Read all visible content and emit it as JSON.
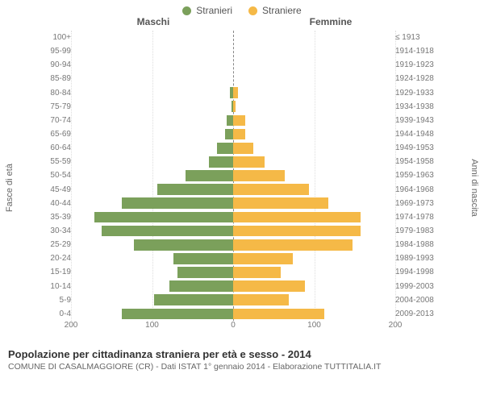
{
  "legend": {
    "male": {
      "label": "Stranieri",
      "color": "#7ba05b"
    },
    "female": {
      "label": "Straniere",
      "color": "#f5b947"
    }
  },
  "headers": {
    "male": "Maschi",
    "female": "Femmine"
  },
  "axis_labels": {
    "left": "Fasce di età",
    "right": "Anni di nascita"
  },
  "chart": {
    "type": "population-pyramid",
    "xmax": 200,
    "xticks": [
      200,
      100,
      0,
      100,
      200
    ],
    "grid_color": "#dddddd",
    "center_color": "#888888",
    "background": "#ffffff",
    "age_groups": [
      {
        "age": "100+",
        "birth": "≤ 1913",
        "m": 0,
        "f": 0
      },
      {
        "age": "95-99",
        "birth": "1914-1918",
        "m": 0,
        "f": 0
      },
      {
        "age": "90-94",
        "birth": "1919-1923",
        "m": 0,
        "f": 0
      },
      {
        "age": "85-89",
        "birth": "1924-1928",
        "m": 0,
        "f": 0
      },
      {
        "age": "80-84",
        "birth": "1929-1933",
        "m": 4,
        "f": 6
      },
      {
        "age": "75-79",
        "birth": "1934-1938",
        "m": 2,
        "f": 3
      },
      {
        "age": "70-74",
        "birth": "1939-1943",
        "m": 8,
        "f": 15
      },
      {
        "age": "65-69",
        "birth": "1944-1948",
        "m": 10,
        "f": 15
      },
      {
        "age": "60-64",
        "birth": "1949-1953",
        "m": 20,
        "f": 25
      },
      {
        "age": "55-59",
        "birth": "1954-1958",
        "m": 30,
        "f": 40
      },
      {
        "age": "50-54",
        "birth": "1959-1963",
        "m": 60,
        "f": 65
      },
      {
        "age": "45-49",
        "birth": "1964-1968",
        "m": 95,
        "f": 95
      },
      {
        "age": "40-44",
        "birth": "1969-1973",
        "m": 140,
        "f": 120
      },
      {
        "age": "35-39",
        "birth": "1974-1978",
        "m": 175,
        "f": 160
      },
      {
        "age": "30-34",
        "birth": "1979-1983",
        "m": 165,
        "f": 160
      },
      {
        "age": "25-29",
        "birth": "1984-1988",
        "m": 125,
        "f": 150
      },
      {
        "age": "20-24",
        "birth": "1989-1993",
        "m": 75,
        "f": 75
      },
      {
        "age": "15-19",
        "birth": "1994-1998",
        "m": 70,
        "f": 60
      },
      {
        "age": "10-14",
        "birth": "1999-2003",
        "m": 80,
        "f": 90
      },
      {
        "age": "5-9",
        "birth": "2004-2008",
        "m": 100,
        "f": 70
      },
      {
        "age": "0-4",
        "birth": "2009-2013",
        "m": 140,
        "f": 115
      }
    ]
  },
  "footer": {
    "title": "Popolazione per cittadinanza straniera per età e sesso - 2014",
    "subtitle": "COMUNE DI CASALMAGGIORE (CR) - Dati ISTAT 1° gennaio 2014 - Elaborazione TUTTITALIA.IT"
  }
}
